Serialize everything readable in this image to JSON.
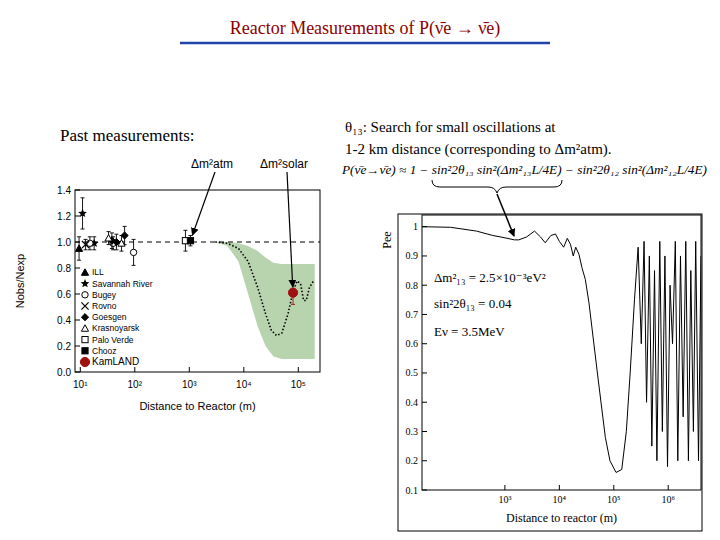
{
  "title": "Reactor Measurements of P(ν̄e → ν̄e)",
  "left_heading": "Past measurements:",
  "right_heading": [
    "θ₁₃: Search for small oscillations at",
    "1-2 km distance (corresponding to Δm²atm)."
  ],
  "formula": "P(ν̄e→ν̄e) ≈ 1 − sin²2θ₁₃ sin²(Δm²₁₃L/4E) − sin²2θ₁₂ sin²(Δm²₁₂L/4E)",
  "chart_data": [
    {
      "type": "scatter",
      "x_label": "Distance to Reactor (m)",
      "y_label": "Nobs/Nexp",
      "log": "x",
      "xlim": [
        8,
        250000
      ],
      "xticks": [
        {
          "value": 10,
          "label": "10¹"
        },
        {
          "value": 100,
          "label": "10²"
        },
        {
          "value": 1000,
          "label": "10³"
        },
        {
          "value": 10000,
          "label": "10⁴"
        },
        {
          "value": 100000,
          "label": "10⁵"
        }
      ],
      "ylim": [
        0,
        1.4
      ],
      "yticks": [
        {
          "value": 0,
          "label": "0.0"
        },
        0.2,
        0.4,
        0.6,
        0.8,
        {
          "value": 1,
          "label": "1.0"
        },
        1.2,
        1.4
      ],
      "legend": "lower left",
      "annotations": [
        {
          "text": "Δm²atm",
          "x": 1050,
          "y": 1.01
        },
        {
          "text": "Δm²solar",
          "x": 80000,
          "y": 0.61
        }
      ],
      "series": [
        {
          "name": "ILL",
          "marker": "triangle",
          "color": "#000000",
          "x": [
            9.5
          ],
          "values": [
            0.95
          ],
          "errors": [
            0.09
          ]
        },
        {
          "name": "Savannah River",
          "marker": "star",
          "color": "#000000",
          "x": [
            11,
            18
          ],
          "values": [
            1.22,
            0.99
          ],
          "errors": [
            0.12,
            0.05
          ]
        },
        {
          "name": "Bugey",
          "marker": "circle-open",
          "color": "#000000",
          "x": [
            15,
            40,
            95
          ],
          "values": [
            0.99,
            0.99,
            0.92
          ],
          "errors": [
            0.05,
            0.05,
            0.1
          ]
        },
        {
          "name": "Rovno",
          "marker": "x",
          "color": "#000000",
          "x": [
            12.5
          ],
          "values": [
            0.98
          ],
          "errors": [
            0.04
          ]
        },
        {
          "name": "Goesgen",
          "marker": "diamond",
          "color": "#000000",
          "x": [
            38,
            46,
            65
          ],
          "values": [
            1.01,
            1.0,
            1.05
          ],
          "errors": [
            0.06,
            0.06,
            0.07
          ]
        },
        {
          "name": "Krasnoyarsk",
          "marker": "triangle-open",
          "color": "#000000",
          "x": [
            33,
            57
          ],
          "values": [
            1.03,
            0.99
          ],
          "errors": [
            0.05,
            0.06
          ]
        },
        {
          "name": "Palo Verde",
          "marker": "square-open",
          "color": "#000000",
          "x": [
            850
          ],
          "values": [
            1.01
          ],
          "errors": [
            0.08
          ]
        },
        {
          "name": "Chooz",
          "marker": "square",
          "color": "#000000",
          "x": [
            1050
          ],
          "values": [
            1.01
          ],
          "errors": [
            0.04
          ]
        },
        {
          "name": "KamLAND",
          "marker": "circle",
          "color": "#a01010",
          "x": [
            80000
          ],
          "values": [
            0.61
          ],
          "errors": [
            0.09
          ]
        },
        {
          "type": "line",
          "line_style": "dashed",
          "color": "#000000",
          "x": [
            8,
            250000
          ],
          "values": [
            1,
            1
          ]
        },
        {
          "type": "area",
          "color": "#b8d4ae",
          "x": [
            3000,
            5000,
            8000,
            12000,
            18000,
            25000,
            35000,
            50000,
            70000,
            100000,
            150000,
            200000
          ],
          "values": [
            1.0,
            1.0,
            0.99,
            0.97,
            0.93,
            0.88,
            0.84,
            0.83,
            0.83,
            0.83,
            0.83,
            0.83
          ],
          "lower": [
            1.0,
            0.97,
            0.85,
            0.6,
            0.35,
            0.2,
            0.12,
            0.1,
            0.1,
            0.1,
            0.1,
            0.1
          ]
        },
        {
          "type": "line",
          "line_style": "dotted",
          "color": "#000000",
          "x": [
            3000,
            5000,
            8000,
            12000,
            18000,
            25000,
            32000,
            40000,
            50000,
            65000,
            80000,
            95000,
            110000,
            125000,
            140000,
            160000,
            190000
          ],
          "values": [
            1.0,
            0.99,
            0.95,
            0.85,
            0.65,
            0.45,
            0.32,
            0.28,
            0.3,
            0.45,
            0.62,
            0.7,
            0.68,
            0.55,
            0.55,
            0.65,
            0.7
          ]
        }
      ]
    },
    {
      "type": "line",
      "x_label": "Distance to reactor (m)",
      "y_label": "Pee",
      "log": "x",
      "xlim": [
        30,
        4000000
      ],
      "xticks": [
        {
          "value": 1000,
          "label": "10³"
        },
        {
          "value": 10000,
          "label": "10⁴"
        },
        {
          "value": 100000,
          "label": "10⁵"
        },
        {
          "value": 1000000,
          "label": "10⁶"
        }
      ],
      "ylim": [
        0.1,
        1.04
      ],
      "yticks": [
        0.1,
        0.2,
        0.3,
        0.4,
        0.5,
        0.6,
        0.7,
        0.8,
        0.9,
        1
      ],
      "annotations": [
        {
          "text": "Δm²₁₃ = 2.5×10⁻³eV²"
        },
        {
          "text": "sin²2θ₁₃ = 0.04"
        },
        {
          "text": "Eν = 3.5MeV"
        }
      ],
      "series": [
        {
          "color": "#000000",
          "x": [
            30,
            100,
            300,
            600,
            1000,
            1500,
            1800,
            2500,
            3500,
            4500,
            5500,
            7000,
            8500,
            10000,
            12000,
            14000,
            16000,
            18000,
            20000,
            23000,
            26000,
            30000,
            35000,
            40000,
            50000,
            60000,
            70000,
            85000,
            110000,
            140000,
            170000,
            200000,
            240000,
            280000,
            320000,
            360000,
            400000,
            450000,
            500000,
            560000,
            620000,
            700000,
            780000,
            870000,
            970000,
            1080000,
            1200000,
            1350000,
            1500000,
            1680000,
            1880000,
            2100000,
            2350000,
            2600000,
            2900000,
            3200000,
            3600000,
            4000000
          ],
          "values": [
            1.0,
            0.998,
            0.985,
            0.97,
            0.962,
            0.955,
            0.955,
            0.965,
            0.985,
            0.965,
            0.945,
            0.97,
            0.975,
            0.95,
            0.93,
            0.96,
            0.94,
            0.9,
            0.93,
            0.905,
            0.86,
            0.82,
            0.74,
            0.65,
            0.5,
            0.38,
            0.28,
            0.2,
            0.16,
            0.17,
            0.3,
            0.5,
            0.75,
            0.93,
            0.6,
            0.95,
            0.4,
            0.9,
            0.25,
            0.85,
            0.2,
            0.95,
            0.3,
            0.9,
            0.18,
            0.8,
            0.6,
            0.95,
            0.2,
            0.9,
            0.35,
            0.95,
            0.2,
            0.85,
            0.3,
            0.95,
            0.2,
            0.9
          ]
        }
      ]
    }
  ]
}
